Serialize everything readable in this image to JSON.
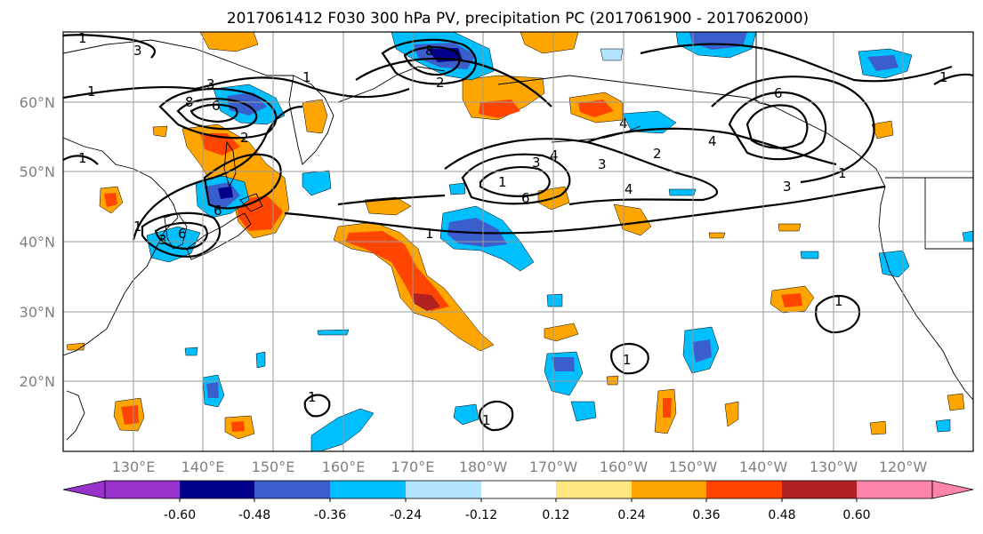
{
  "title": "2017061412 F030 300 hPa PV, precipitation PC (2017061900 - 2017062000)",
  "lat_labels": [
    "60°N",
    "50°N",
    "40°N",
    "30°N",
    "20°N"
  ],
  "lon_labels": [
    "130°E",
    "140°E",
    "150°E",
    "160°E",
    "170°E",
    "180°W",
    "170°W",
    "160°W",
    "150°W",
    "140°W",
    "130°W",
    "120°W"
  ],
  "colorbar": {
    "ticks": [
      "-0.60",
      "-0.48",
      "-0.36",
      "-0.24",
      "-0.12",
      "0.12",
      "0.24",
      "0.36",
      "0.48",
      "0.60"
    ],
    "colors": [
      "#9932cc",
      "#00008b",
      "#3a5fcd",
      "#00bfff",
      "#b2e4ff",
      "#ffffff",
      "#ffe680",
      "#ffa500",
      "#ff4500",
      "#b22222",
      "#ff85a8"
    ]
  },
  "pv_contour_labels": [
    "1",
    "3",
    "6",
    "8",
    "1",
    "1",
    "3",
    "6",
    "8",
    "1",
    "1",
    "3",
    "3",
    "4",
    "2",
    "2",
    "4",
    "3",
    "6",
    "1",
    "6",
    "2",
    "4",
    "4",
    "3",
    "6",
    "1",
    "1",
    "1",
    "1",
    "1",
    "1",
    "1"
  ]
}
